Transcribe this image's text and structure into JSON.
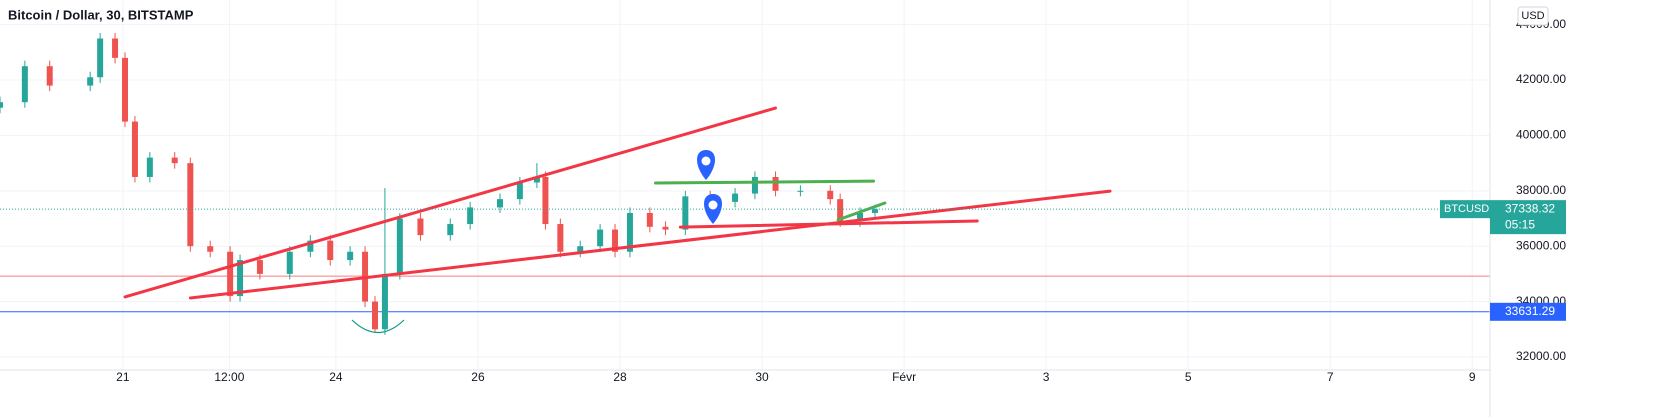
{
  "chart_data": {
    "type": "candlestick",
    "title": "Bitcoin / Dollar, 30, BITSTAMP",
    "currency": "USD",
    "x": [
      19.27,
      19.62,
      19.97,
      20.54,
      20.68,
      20.89,
      21.03,
      21.17,
      21.38,
      21.73,
      21.95,
      22.23,
      22.51,
      22.65,
      22.93,
      23.35,
      23.64,
      23.92,
      24.2,
      24.41,
      24.55,
      24.69,
      24.9,
      25.19,
      25.61,
      25.89,
      26.31,
      26.59,
      26.83,
      26.95,
      27.16,
      27.44,
      27.72,
      27.93,
      28.14,
      28.42,
      28.64,
      28.92,
      29.27,
      29.62,
      29.9,
      30.19,
      30.54,
      30.96,
      31.1,
      31.38,
      31.59
    ],
    "candles": [
      [
        41000,
        41400,
        40800,
        41200
      ],
      [
        41200,
        42700,
        41000,
        42500
      ],
      [
        42500,
        42700,
        41600,
        41800
      ],
      [
        41800,
        42300,
        41600,
        42100
      ],
      [
        42100,
        43700,
        41900,
        43500
      ],
      [
        43500,
        43700,
        42600,
        42800
      ],
      [
        42800,
        43000,
        40300,
        40500
      ],
      [
        40500,
        40700,
        38300,
        38500
      ],
      [
        38500,
        39400,
        38300,
        39200
      ],
      [
        39200,
        39400,
        38800,
        39000
      ],
      [
        39000,
        39200,
        35800,
        36000
      ],
      [
        36000,
        36200,
        35600,
        35800
      ],
      [
        35800,
        36000,
        34000,
        34200
      ],
      [
        34200,
        35700,
        34000,
        35500
      ],
      [
        35500,
        35700,
        34800,
        35000
      ],
      [
        35000,
        36000,
        34800,
        35800
      ],
      [
        35800,
        36400,
        35600,
        36200
      ],
      [
        36200,
        36400,
        35300,
        35500
      ],
      [
        35500,
        36000,
        35300,
        35800
      ],
      [
        35800,
        36000,
        33800,
        34000
      ],
      [
        34000,
        34200,
        32900,
        33000
      ],
      [
        33000,
        38100,
        32800,
        35000
      ],
      [
        35000,
        37200,
        34800,
        37000
      ],
      [
        37000,
        37200,
        36200,
        36400
      ],
      [
        36400,
        37000,
        36200,
        36800
      ],
      [
        36800,
        37600,
        36600,
        37400
      ],
      [
        37400,
        37900,
        37200,
        37700
      ],
      [
        37700,
        38500,
        37500,
        38300
      ],
      [
        38300,
        39000,
        38100,
        38500
      ],
      [
        38500,
        38700,
        36600,
        36800
      ],
      [
        36800,
        37000,
        35600,
        35800
      ],
      [
        35800,
        36200,
        35600,
        36000
      ],
      [
        36000,
        36800,
        35800,
        36600
      ],
      [
        36600,
        36800,
        35600,
        35800
      ],
      [
        35800,
        37400,
        35600,
        37200
      ],
      [
        37200,
        37400,
        36500,
        36700
      ],
      [
        36700,
        36900,
        36400,
        36600
      ],
      [
        36600,
        38000,
        36400,
        37800
      ],
      [
        37800,
        38000,
        37400,
        37600
      ],
      [
        37600,
        38100,
        37400,
        37900
      ],
      [
        37900,
        38700,
        37700,
        38500
      ],
      [
        38500,
        38700,
        37800,
        38000
      ],
      [
        38000,
        38200,
        37800,
        38000
      ],
      [
        38000,
        38200,
        37500,
        37700
      ],
      [
        37700,
        37900,
        36700,
        36900
      ],
      [
        36900,
        37400,
        36700,
        37200
      ],
      [
        37200,
        37500,
        37000,
        37338.32
      ]
    ],
    "up_color": "#26a69a",
    "down_color": "#ef5350",
    "xlim": [
      19.27,
      40.25
    ],
    "ylim": [
      31530,
      44890
    ],
    "xticks": [
      21,
      {
        "value": 22.5,
        "label": "12:00"
      },
      24,
      26,
      28,
      30,
      {
        "value": 32,
        "label": "Févr"
      },
      {
        "value": 34,
        "label": "3"
      },
      {
        "value": 36,
        "label": "5"
      },
      {
        "value": 38,
        "label": "7"
      },
      {
        "value": 40,
        "label": "9"
      }
    ],
    "yticks": [
      {
        "value": 44000,
        "label": "44000.00"
      },
      {
        "value": 42000,
        "label": "42000.00"
      },
      {
        "value": 40000,
        "label": "40000.00"
      },
      {
        "value": 38000,
        "label": "38000.00"
      },
      {
        "value": 36000,
        "label": "36000.00"
      },
      {
        "value": 34000,
        "label": "34000.00"
      },
      {
        "value": 32000,
        "label": "32000.00"
      }
    ],
    "grid": true,
    "trend_lines": [
      {
        "color": "#f23645",
        "points": [
          21.03,
          34170,
          30.19,
          40990
        ]
      },
      {
        "color": "#f23645",
        "points": [
          21.95,
          34130,
          34.9,
          37990
        ]
      },
      {
        "color": "#f23645",
        "points": [
          28.85,
          36690,
          33.03,
          36910
        ]
      },
      {
        "color": "#4caf50",
        "points": [
          28.5,
          38280,
          31.57,
          38350
        ]
      },
      {
        "color": "#4caf50",
        "points": [
          31.07,
          36950,
          31.73,
          37560
        ]
      }
    ],
    "horizontal_lines": [
      {
        "color": "#f77c80",
        "value": 34920
      },
      {
        "color": "#2962ff",
        "value": 33631.29,
        "label": "33631.29"
      }
    ],
    "price_tag": {
      "name": "BTCUSD",
      "value": 37338.32,
      "countdown": "05:15",
      "color": "#26a69a"
    }
  }
}
